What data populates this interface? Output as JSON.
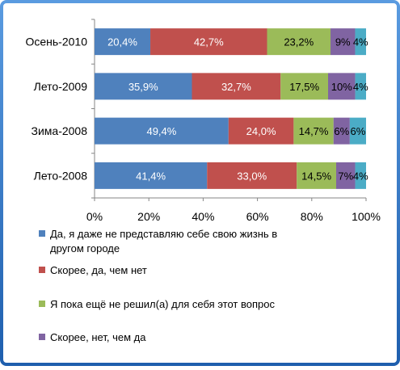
{
  "chart_data": {
    "type": "bar",
    "orientation": "horizontal",
    "stacked": "percent",
    "categories": [
      "Осень-2010",
      "Лето-2009",
      "Зима-2008",
      "Лето-2008"
    ],
    "series": [
      {
        "name": "Да, я даже не представляю себе свою жизнь в другом городе",
        "color": "#4f81bd",
        "values": [
          20.4,
          35.9,
          49.4,
          41.4
        ],
        "labels": [
          "20,4%",
          "35,9%",
          "49,4%",
          "41,4%"
        ]
      },
      {
        "name": "Скорее, да, чем нет",
        "color": "#c0504d",
        "values": [
          42.7,
          32.7,
          24.0,
          33.0
        ],
        "labels": [
          "42,7%",
          "32,7%",
          "24,0%",
          "33,0%"
        ]
      },
      {
        "name": "Я пока ещё не решил(а) для себя этот вопрос",
        "color": "#9bbb59",
        "values": [
          23.2,
          17.5,
          14.7,
          14.5
        ],
        "labels": [
          "23,2%",
          "17,5%",
          "14,7%",
          "14,5%"
        ]
      },
      {
        "name": "Скорее, нет, чем да",
        "color": "#8064a2",
        "values": [
          9,
          10,
          6,
          7
        ],
        "labels": [
          "9%",
          "10%",
          "6%",
          "7%"
        ]
      },
      {
        "name": "",
        "color": "#4bacc6",
        "values": [
          4,
          4,
          6,
          4
        ],
        "labels": [
          "4%",
          "4%",
          "6%",
          "4%"
        ]
      }
    ],
    "xaxis": {
      "min": 0,
      "max": 100,
      "ticks": [
        "0%",
        "20%",
        "40%",
        "60%",
        "80%",
        "100%"
      ]
    },
    "grid": false,
    "legend_position": "bottom",
    "title": "",
    "xlabel": "",
    "ylabel": ""
  },
  "colors": {
    "frame": "#2a74c2",
    "label_light": "#ffffff",
    "label_dark": "#000000"
  }
}
